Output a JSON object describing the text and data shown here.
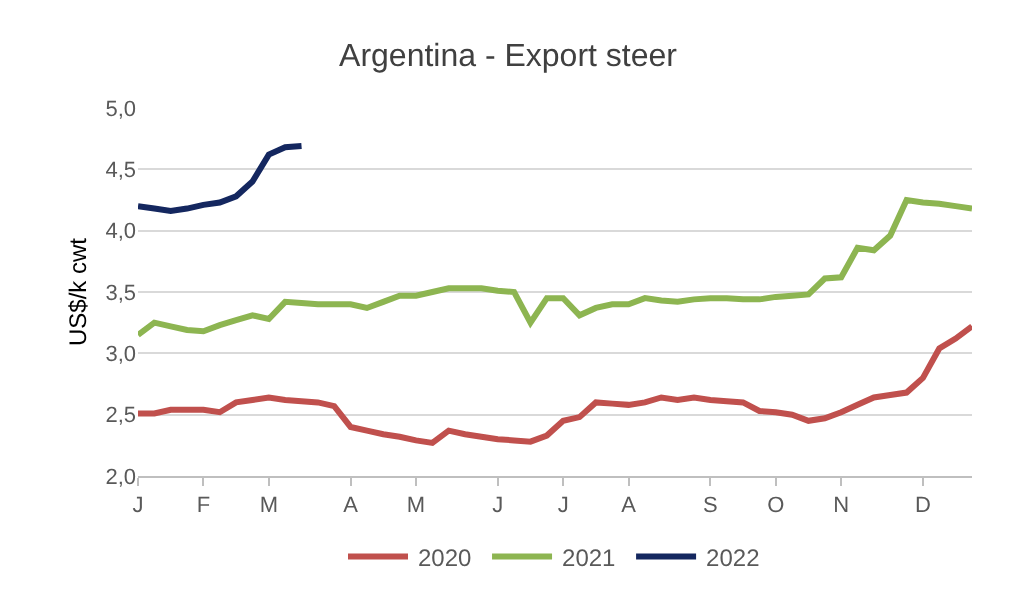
{
  "chart_data": {
    "type": "line",
    "title": "Argentina - Export steer",
    "ylabel": "US$/k cwt",
    "categories": [
      "J",
      null,
      null,
      null,
      "F",
      null,
      null,
      null,
      "M",
      null,
      null,
      null,
      null,
      "A",
      null,
      null,
      null,
      "M",
      null,
      null,
      null,
      null,
      "J",
      null,
      null,
      null,
      "J",
      null,
      null,
      null,
      "A",
      null,
      null,
      null,
      null,
      "S",
      null,
      null,
      null,
      "O",
      null,
      null,
      null,
      "N",
      null,
      null,
      null,
      null,
      "D",
      null,
      null,
      null
    ],
    "ylim": [
      2,
      5
    ],
    "yticks": [
      {
        "value": 2,
        "label": "2,0"
      },
      {
        "value": 2.5,
        "label": "2,5"
      },
      {
        "value": 3,
        "label": "3,0"
      },
      {
        "value": 3.5,
        "label": "3,5"
      },
      {
        "value": 4,
        "label": "4,0"
      },
      {
        "value": 4.5,
        "label": "4,5"
      },
      {
        "value": 5,
        "label": "5,0"
      }
    ],
    "grid": "y",
    "legend": "bottom",
    "marker": "none",
    "line_style": "solid",
    "series": [
      {
        "name": "2020",
        "color": "#c0504d",
        "values": [
          2.51,
          2.51,
          2.54,
          2.54,
          2.54,
          2.52,
          2.6,
          2.62,
          2.64,
          2.62,
          2.61,
          2.6,
          2.57,
          2.4,
          2.37,
          2.34,
          2.32,
          2.29,
          2.27,
          2.37,
          2.34,
          2.32,
          2.3,
          2.29,
          2.28,
          2.33,
          2.45,
          2.48,
          2.6,
          2.59,
          2.58,
          2.6,
          2.64,
          2.62,
          2.64,
          2.62,
          2.61,
          2.6,
          2.53,
          2.52,
          2.5,
          2.45,
          2.47,
          2.52,
          2.58,
          2.64,
          2.66,
          2.68,
          2.8,
          3.04,
          3.12,
          3.22
        ]
      },
      {
        "name": "2021",
        "color": "#8db551",
        "values": [
          3.15,
          3.25,
          3.22,
          3.19,
          3.18,
          3.23,
          3.27,
          3.31,
          3.28,
          3.42,
          3.41,
          3.4,
          3.4,
          3.4,
          3.37,
          3.42,
          3.47,
          3.47,
          3.5,
          3.53,
          3.53,
          3.53,
          3.51,
          3.5,
          3.25,
          3.45,
          3.45,
          3.31,
          3.37,
          3.4,
          3.4,
          3.45,
          3.43,
          3.42,
          3.44,
          3.45,
          3.45,
          3.44,
          3.44,
          3.46,
          3.47,
          3.48,
          3.61,
          3.62,
          3.86,
          3.84,
          3.96,
          4.25,
          4.23,
          4.22,
          4.2,
          4.18
        ]
      },
      {
        "name": "2022",
        "color": "#14275f",
        "values": [
          4.2,
          4.18,
          4.16,
          4.18,
          4.21,
          4.23,
          4.28,
          4.4,
          4.62,
          4.68,
          4.69,
          null,
          null,
          null,
          null,
          null,
          null,
          null,
          null,
          null,
          null,
          null,
          null,
          null,
          null,
          null,
          null,
          null,
          null,
          null,
          null,
          null,
          null,
          null,
          null,
          null,
          null,
          null,
          null,
          null,
          null,
          null,
          null,
          null,
          null,
          null,
          null,
          null,
          null,
          null,
          null,
          null
        ]
      }
    ]
  }
}
